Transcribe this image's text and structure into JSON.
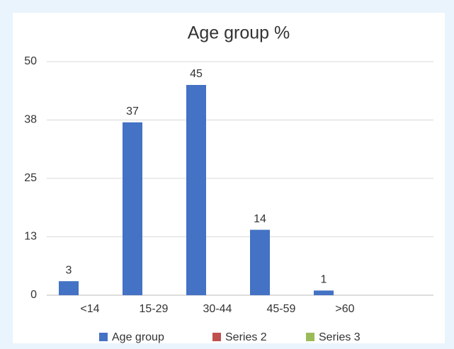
{
  "chart_data": {
    "type": "bar",
    "title": "Age group %",
    "categories": [
      "<14",
      "15-29",
      "30-44",
      "45-59",
      ">60"
    ],
    "series": [
      {
        "name": "Age group",
        "color": "#4472c4",
        "values": [
          3,
          37,
          45,
          14,
          1
        ]
      },
      {
        "name": "Series 2",
        "color": "#c0504d",
        "values": [
          null,
          null,
          null,
          null,
          null
        ]
      },
      {
        "name": "Series 3",
        "color": "#9bbb59",
        "values": [
          null,
          null,
          null,
          null,
          null
        ]
      }
    ],
    "ylim": [
      0,
      50
    ],
    "yticks": [
      0,
      {
        "value": 12.5,
        "label": "13"
      },
      25,
      {
        "value": 37.5,
        "label": "38"
      },
      50
    ],
    "grid": true,
    "legend": "bottom",
    "data_labels": true
  }
}
